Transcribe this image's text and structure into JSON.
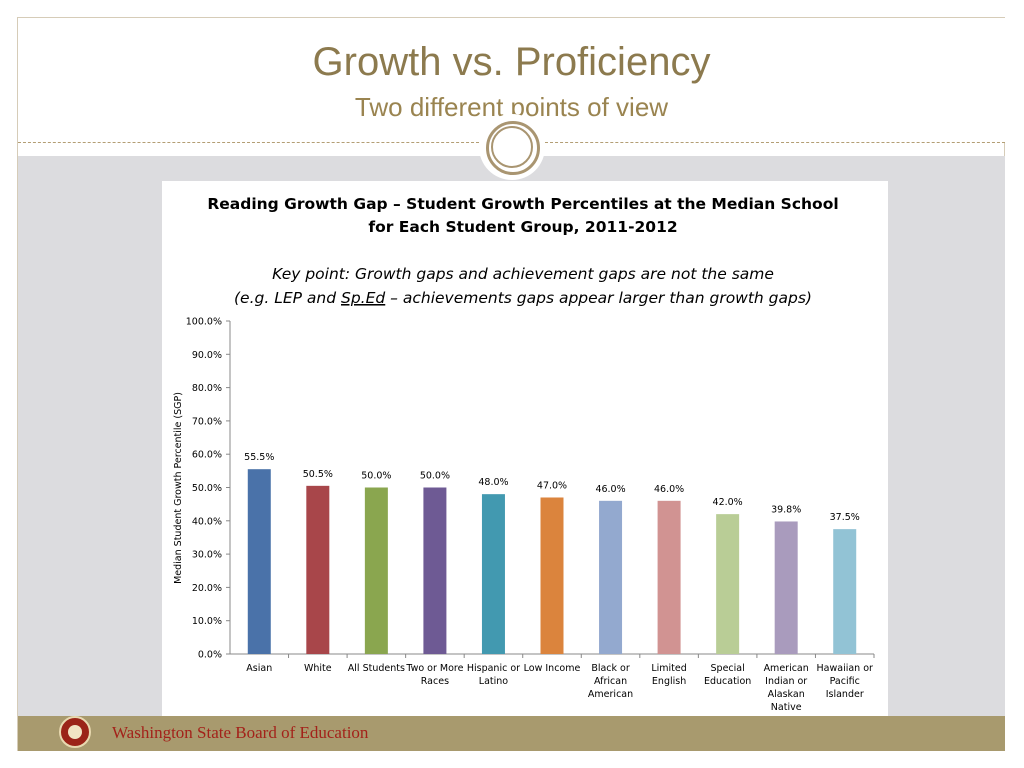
{
  "slide": {
    "title": "Growth vs. Proficiency",
    "subtitle": "Two different points of view",
    "footer": "Washington State Board of Education"
  },
  "chart_data": {
    "type": "bar",
    "title_line1": "Reading Growth Gap – Student Growth Percentiles at the Median School",
    "title_line2": "for Each Student Group, 2011-2012",
    "note_line1": "Key point: Growth gaps and achievement gaps are not the same",
    "note_line2_pre": "(e.g. LEP and ",
    "note_line2_underlined": "Sp.Ed",
    "note_line2_post": " – achievements gaps appear larger than growth gaps)",
    "ylabel": "Median Student Growth Percentile (SGP)",
    "ylim": [
      0,
      100
    ],
    "yticks": [
      "0.0%",
      "10.0%",
      "20.0%",
      "30.0%",
      "40.0%",
      "50.0%",
      "60.0%",
      "70.0%",
      "80.0%",
      "90.0%",
      "100.0%"
    ],
    "categories": [
      [
        "Asian"
      ],
      [
        "White"
      ],
      [
        "All Students"
      ],
      [
        "Two or More",
        "Races"
      ],
      [
        "Hispanic or",
        "Latino"
      ],
      [
        "Low Income"
      ],
      [
        "Black or",
        "African",
        "American"
      ],
      [
        "Limited",
        "English"
      ],
      [
        "Special",
        "Education"
      ],
      [
        "American",
        "Indian or",
        "Alaskan",
        "Native"
      ],
      [
        "Hawaiian or",
        "Pacific",
        "Islander"
      ]
    ],
    "values": [
      55.5,
      50.5,
      50.0,
      50.0,
      48.0,
      47.0,
      46.0,
      46.0,
      42.0,
      39.8,
      37.5
    ],
    "data_labels": [
      "55.5%",
      "50.5%",
      "50.0%",
      "50.0%",
      "48.0%",
      "47.0%",
      "46.0%",
      "46.0%",
      "42.0%",
      "39.8%",
      "37.5%"
    ],
    "colors": [
      "#4a72a9",
      "#a8464a",
      "#8aa64f",
      "#6e5a94",
      "#4299b0",
      "#db843d",
      "#93a9cf",
      "#d19392",
      "#b9cd96",
      "#a99bbd",
      "#92c3d5"
    ]
  }
}
